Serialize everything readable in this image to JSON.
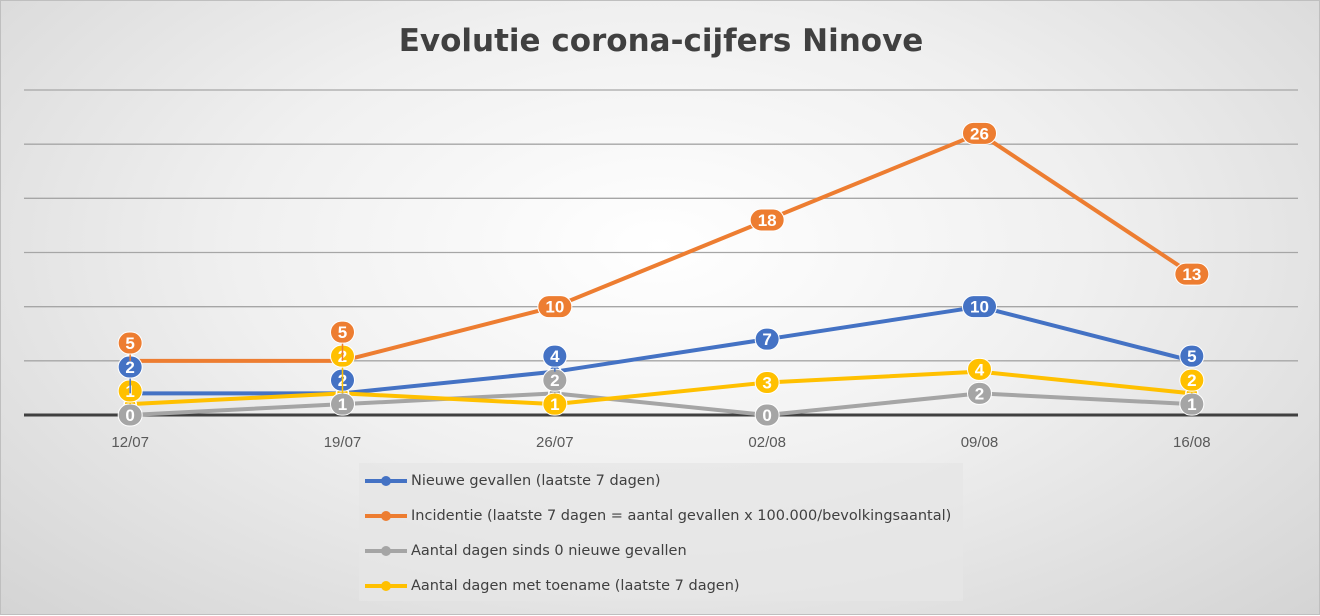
{
  "chart_data": {
    "type": "line",
    "title": "Evolutie corona-cijfers Ninove",
    "categories": [
      "12/07",
      "19/07",
      "26/07",
      "02/08",
      "09/08",
      "16/08"
    ],
    "ylim": [
      0,
      30
    ],
    "grid": true,
    "gridStep": 5,
    "legend_position": "bottom",
    "series": [
      {
        "name": "Nieuwe gevallen (laatste 7 dagen)",
        "color": "#4472c4",
        "values": [
          2,
          2,
          4,
          7,
          10,
          5
        ]
      },
      {
        "name": "Incidentie (laatste 7 dagen = aantal gevallen x 100.000/bevolkingsaantal)",
        "color": "#ed7d31",
        "values": [
          5,
          5,
          10,
          18,
          26,
          13
        ]
      },
      {
        "name": "Aantal dagen sinds 0 nieuwe gevallen",
        "color": "#a5a5a5",
        "values": [
          0,
          1,
          2,
          0,
          2,
          1
        ]
      },
      {
        "name": "Aantal dagen met toename (laatste 7 dagen)",
        "color": "#ffc000",
        "values": [
          1,
          2,
          1,
          3,
          4,
          2
        ]
      }
    ]
  }
}
